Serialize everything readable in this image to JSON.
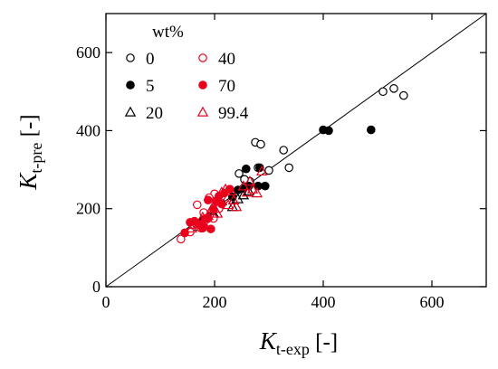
{
  "chart_data": {
    "type": "scatter",
    "xlabel": {
      "main": "K",
      "sub": "t-exp",
      "unit": " [-]"
    },
    "ylabel": {
      "main": "K",
      "sub": "t-pre",
      "unit": " [-]"
    },
    "xlim": [
      0,
      700
    ],
    "ylim": [
      0,
      700
    ],
    "xticks": [
      0,
      200,
      400,
      600
    ],
    "yticks": [
      0,
      200,
      400,
      600
    ],
    "grid": false,
    "reference_line": "y = x",
    "legend_title": "wt%",
    "legend_position": "top-left",
    "colors": {
      "black": "#000000",
      "red": "#e8001c"
    },
    "series": [
      {
        "name": "0",
        "marker": "circle",
        "filled": false,
        "color": "black",
        "points": [
          [
            510,
            500
          ],
          [
            530,
            508
          ],
          [
            548,
            490
          ],
          [
            275,
            370
          ],
          [
            285,
            365
          ],
          [
            327,
            350
          ],
          [
            337,
            305
          ],
          [
            280,
            305
          ],
          [
            300,
            298
          ],
          [
            245,
            290
          ],
          [
            265,
            270
          ],
          [
            255,
            275
          ]
        ]
      },
      {
        "name": "5",
        "marker": "circle",
        "filled": true,
        "color": "black",
        "points": [
          [
            400,
            402
          ],
          [
            410,
            400
          ],
          [
            488,
            402
          ],
          [
            283,
            305
          ],
          [
            258,
            302
          ],
          [
            280,
            258
          ],
          [
            293,
            258
          ],
          [
            263,
            258
          ],
          [
            243,
            248
          ],
          [
            253,
            252
          ],
          [
            233,
            230
          ]
        ]
      },
      {
        "name": "20",
        "marker": "triangle",
        "filled": false,
        "color": "black",
        "points": [
          [
            233,
            205
          ],
          [
            253,
            235
          ],
          [
            263,
            245
          ],
          [
            213,
            220
          ],
          [
            193,
            195
          ],
          [
            183,
            180
          ],
          [
            173,
            165
          ],
          [
            165,
            155
          ],
          [
            243,
            225
          ],
          [
            198,
            188
          ],
          [
            178,
            172
          ],
          [
            205,
            205
          ]
        ]
      },
      {
        "name": "40",
        "marker": "circle",
        "filled": false,
        "color": "red",
        "points": [
          [
            138,
            122
          ],
          [
            155,
            140
          ],
          [
            168,
            210
          ],
          [
            175,
            150
          ],
          [
            183,
            170
          ],
          [
            198,
            175
          ],
          [
            208,
            200
          ],
          [
            200,
            238
          ],
          [
            213,
            232
          ],
          [
            190,
            228
          ],
          [
            180,
            190
          ],
          [
            160,
            160
          ]
        ]
      },
      {
        "name": "70",
        "marker": "circle",
        "filled": true,
        "color": "red",
        "points": [
          [
            145,
            138
          ],
          [
            155,
            165
          ],
          [
            163,
            168
          ],
          [
            172,
            160
          ],
          [
            178,
            150
          ],
          [
            183,
            175
          ],
          [
            188,
            175
          ],
          [
            193,
            148
          ],
          [
            198,
            198
          ],
          [
            203,
            218
          ],
          [
            188,
            222
          ],
          [
            208,
            232
          ],
          [
            218,
            240
          ],
          [
            228,
            250
          ],
          [
            213,
            212
          ],
          [
            180,
            155
          ]
        ]
      },
      {
        "name": "99.4",
        "marker": "triangle",
        "filled": false,
        "color": "red",
        "points": [
          [
            158,
            150
          ],
          [
            170,
            160
          ],
          [
            178,
            178
          ],
          [
            188,
            182
          ],
          [
            195,
            200
          ],
          [
            205,
            188
          ],
          [
            213,
            242
          ],
          [
            220,
            250
          ],
          [
            230,
            245
          ],
          [
            235,
            222
          ],
          [
            225,
            210
          ],
          [
            240,
            205
          ],
          [
            253,
            258
          ],
          [
            260,
            242
          ],
          [
            265,
            270
          ],
          [
            270,
            250
          ],
          [
            278,
            240
          ],
          [
            287,
            296
          ]
        ]
      }
    ]
  }
}
